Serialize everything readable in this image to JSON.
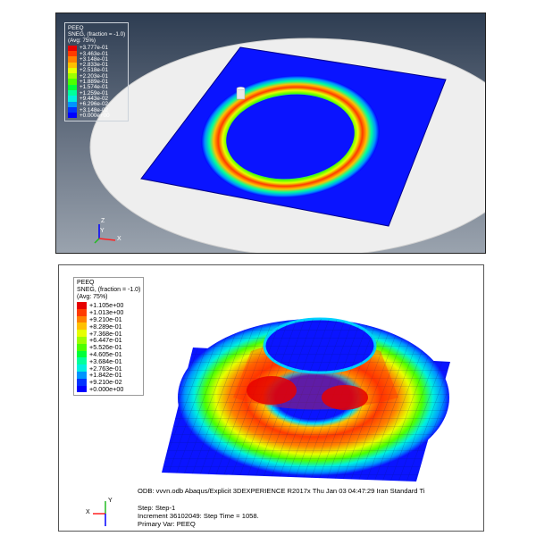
{
  "top_view": {
    "legend": {
      "title_lines": [
        "PEEQ",
        "SNEG, (fraction = -1.0)",
        "(Avg: 75%)"
      ],
      "entries": [
        {
          "label": "+3.777e-01",
          "color": "#e60000"
        },
        {
          "label": "+3.463e-01",
          "color": "#ff3b00"
        },
        {
          "label": "+3.148e-01",
          "color": "#ff8000"
        },
        {
          "label": "+2.833e-01",
          "color": "#ffc000"
        },
        {
          "label": "+2.518e-01",
          "color": "#e6ff00"
        },
        {
          "label": "+2.203e-01",
          "color": "#9cff00"
        },
        {
          "label": "+1.889e-01",
          "color": "#4dff00"
        },
        {
          "label": "+1.574e-01",
          "color": "#00ff3a"
        },
        {
          "label": "+1.259e-01",
          "color": "#00ff9c"
        },
        {
          "label": "+9.443e-02",
          "color": "#00f0e0"
        },
        {
          "label": "+6.296e-02",
          "color": "#0094ff"
        },
        {
          "label": "+3.148e-02",
          "color": "#0033ff"
        },
        {
          "label": "+0.000e+00",
          "color": "#0000ff"
        }
      ]
    },
    "triad": {
      "z": "Z",
      "y": "Y",
      "x": "X"
    }
  },
  "bottom_view": {
    "legend": {
      "title_lines": [
        "PEEQ",
        "SNEG, (fraction = -1.0)",
        "(Avg: 75%)"
      ],
      "entries": [
        {
          "label": "+1.105e+00",
          "color": "#e60000"
        },
        {
          "label": "+1.013e+00",
          "color": "#ff3b00"
        },
        {
          "label": "+9.210e-01",
          "color": "#ff8000"
        },
        {
          "label": "+8.289e-01",
          "color": "#ffc000"
        },
        {
          "label": "+7.368e-01",
          "color": "#e6ff00"
        },
        {
          "label": "+6.447e-01",
          "color": "#9cff00"
        },
        {
          "label": "+5.526e-01",
          "color": "#4dff00"
        },
        {
          "label": "+4.605e-01",
          "color": "#00ff3a"
        },
        {
          "label": "+3.684e-01",
          "color": "#00ff9c"
        },
        {
          "label": "+2.763e-01",
          "color": "#00f0e0"
        },
        {
          "label": "+1.842e-01",
          "color": "#0094ff"
        },
        {
          "label": "+9.210e-02",
          "color": "#0033ff"
        },
        {
          "label": "+0.000e+00",
          "color": "#0000ff"
        }
      ]
    },
    "status": {
      "odb_line": "ODB: vvvn.odb    Abaqus/Explicit 3DEXPERIENCE R2017x    Thu Jan 03 04:47:29 Iran Standard Ti",
      "step": "Step: Step-1",
      "increment": "Increment  36102049: Step Time =     1058.",
      "primary_var": "Primary Var: PEEQ"
    },
    "triad": {
      "x": "X",
      "y": "Y"
    }
  }
}
